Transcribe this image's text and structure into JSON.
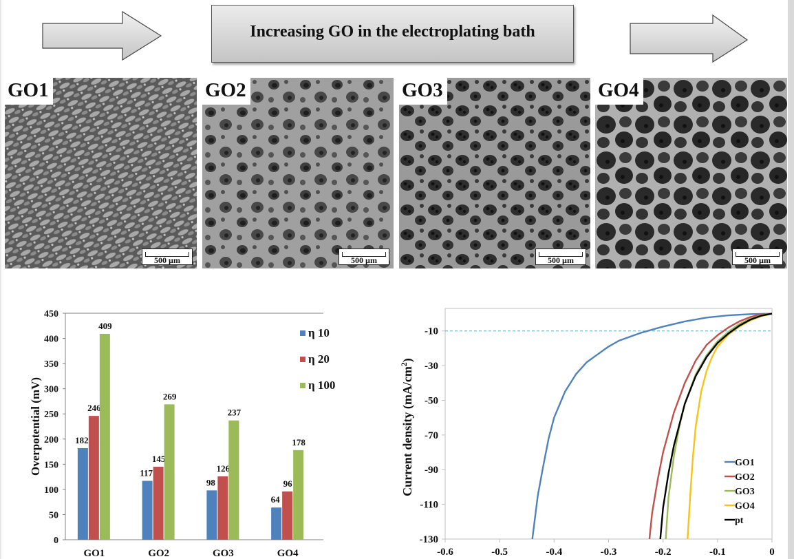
{
  "header": {
    "banner_text": "Increasing GO in the electroplating bath",
    "arrow_icon_left": "right-arrow",
    "arrow_icon_right": "right-arrow"
  },
  "sem_images": [
    {
      "label": "GO1",
      "scale_bar": "500 µm",
      "texture": "elongated diagonal nodules"
    },
    {
      "label": "GO2",
      "scale_bar": "500 µm",
      "texture": "smooth surface with small pits"
    },
    {
      "label": "GO3",
      "scale_bar": "500 µm",
      "texture": "network with many pores"
    },
    {
      "label": "GO4",
      "scale_bar": "500 µm",
      "texture": "large open honeycomb pores"
    }
  ],
  "colors": {
    "blue": "#4f81bd",
    "red": "#c0504d",
    "green": "#9bbb59",
    "yellow": "#f7c21a",
    "black": "#000000",
    "axis": "#a6a6a6",
    "ref_line": "#4bacc6"
  },
  "chart_data": [
    {
      "type": "bar",
      "title": "",
      "xlabel": "",
      "ylabel": "Overpotential (mV)",
      "categories": [
        "GO1",
        "GO2",
        "GO3",
        "GO4"
      ],
      "ylim": [
        0,
        450
      ],
      "yticks": [
        "0",
        "50",
        "100",
        "150",
        "200",
        "250",
        "300",
        "350",
        "400",
        "450"
      ],
      "grid": false,
      "legend_position": "top-right",
      "series": [
        {
          "name": "η 10",
          "color": "#4f81bd",
          "values": [
            182,
            117,
            98,
            64
          ],
          "labels": [
            "182",
            "117",
            "98",
            "64"
          ]
        },
        {
          "name": "η 20",
          "color": "#c0504d",
          "values": [
            246,
            145,
            126,
            96
          ],
          "labels": [
            "246",
            "145",
            "126",
            "96"
          ]
        },
        {
          "name": "η 100",
          "color": "#9bbb59",
          "values": [
            409,
            269,
            237,
            178
          ],
          "labels": [
            "409",
            "269",
            "237",
            "178"
          ]
        }
      ]
    },
    {
      "type": "line",
      "title": "",
      "xlabel": "",
      "ylabel": "Current density (mA/cm",
      "ylabel_sup": "2",
      "ylabel_end": ")",
      "xlim": [
        -0.6,
        0
      ],
      "ylim": [
        -130,
        3
      ],
      "xticks": [
        "-0.6",
        "-0.5",
        "-0.4",
        "-0.3",
        "-0.2",
        "-0.1",
        "0"
      ],
      "xtick_values": [
        -0.6,
        -0.5,
        -0.4,
        -0.3,
        -0.2,
        -0.1,
        0
      ],
      "yticks": [
        "-10",
        "-30",
        "-50",
        "-70",
        "-90",
        "-110",
        "-130"
      ],
      "ytick_values": [
        -10,
        -30,
        -50,
        -70,
        -90,
        -110,
        -130
      ],
      "reference_line": {
        "y": -10,
        "style": "dashed"
      },
      "legend_position": "bottom-right",
      "series": [
        {
          "name": "GO1",
          "color": "#4f81bd",
          "points": [
            [
              0,
              0
            ],
            [
              -0.04,
              -0.3
            ],
            [
              -0.08,
              -1
            ],
            [
              -0.12,
              -2.3
            ],
            [
              -0.16,
              -4.5
            ],
            [
              -0.2,
              -7.5
            ],
            [
              -0.24,
              -11
            ],
            [
              -0.28,
              -15.5
            ],
            [
              -0.3,
              -19
            ],
            [
              -0.32,
              -23.5
            ],
            [
              -0.34,
              -28
            ],
            [
              -0.36,
              -35
            ],
            [
              -0.38,
              -45
            ],
            [
              -0.4,
              -60
            ],
            [
              -0.41,
              -72
            ],
            [
              -0.42,
              -88
            ],
            [
              -0.43,
              -105
            ],
            [
              -0.44,
              -130
            ]
          ]
        },
        {
          "name": "GO2",
          "color": "#c0504d",
          "points": [
            [
              0,
              0
            ],
            [
              -0.02,
              -0.5
            ],
            [
              -0.04,
              -2
            ],
            [
              -0.06,
              -4.5
            ],
            [
              -0.08,
              -8
            ],
            [
              -0.1,
              -12.5
            ],
            [
              -0.12,
              -18
            ],
            [
              -0.14,
              -27
            ],
            [
              -0.16,
              -40
            ],
            [
              -0.18,
              -57
            ],
            [
              -0.2,
              -80
            ],
            [
              -0.21,
              -96
            ],
            [
              -0.22,
              -115
            ],
            [
              -0.225,
              -130
            ]
          ]
        },
        {
          "name": "GO3",
          "color": "#9bbb59",
          "points": [
            [
              0,
              0
            ],
            [
              -0.02,
              -1
            ],
            [
              -0.04,
              -3
            ],
            [
              -0.06,
              -6
            ],
            [
              -0.08,
              -10.5
            ],
            [
              -0.1,
              -16
            ],
            [
              -0.12,
              -24
            ],
            [
              -0.14,
              -35
            ],
            [
              -0.16,
              -52
            ],
            [
              -0.17,
              -65
            ],
            [
              -0.18,
              -82
            ],
            [
              -0.19,
              -106
            ],
            [
              -0.195,
              -130
            ]
          ]
        },
        {
          "name": "GO4",
          "color": "#f7c21a",
          "points": [
            [
              0,
              0
            ],
            [
              -0.02,
              -1.5
            ],
            [
              -0.04,
              -4
            ],
            [
              -0.06,
              -7.5
            ],
            [
              -0.08,
              -12
            ],
            [
              -0.1,
              -19
            ],
            [
              -0.11,
              -25
            ],
            [
              -0.12,
              -33
            ],
            [
              -0.13,
              -45
            ],
            [
              -0.14,
              -65
            ],
            [
              -0.145,
              -82
            ],
            [
              -0.15,
              -104
            ],
            [
              -0.155,
              -130
            ]
          ]
        },
        {
          "name": "pt",
          "color": "#000000",
          "points": [
            [
              0,
              0
            ],
            [
              -0.02,
              -1.2
            ],
            [
              -0.04,
              -3.5
            ],
            [
              -0.06,
              -7
            ],
            [
              -0.08,
              -11.5
            ],
            [
              -0.1,
              -17
            ],
            [
              -0.12,
              -25
            ],
            [
              -0.14,
              -36
            ],
            [
              -0.16,
              -52
            ],
            [
              -0.18,
              -76
            ],
            [
              -0.19,
              -92
            ],
            [
              -0.2,
              -112
            ],
            [
              -0.205,
              -130
            ]
          ]
        }
      ]
    }
  ]
}
